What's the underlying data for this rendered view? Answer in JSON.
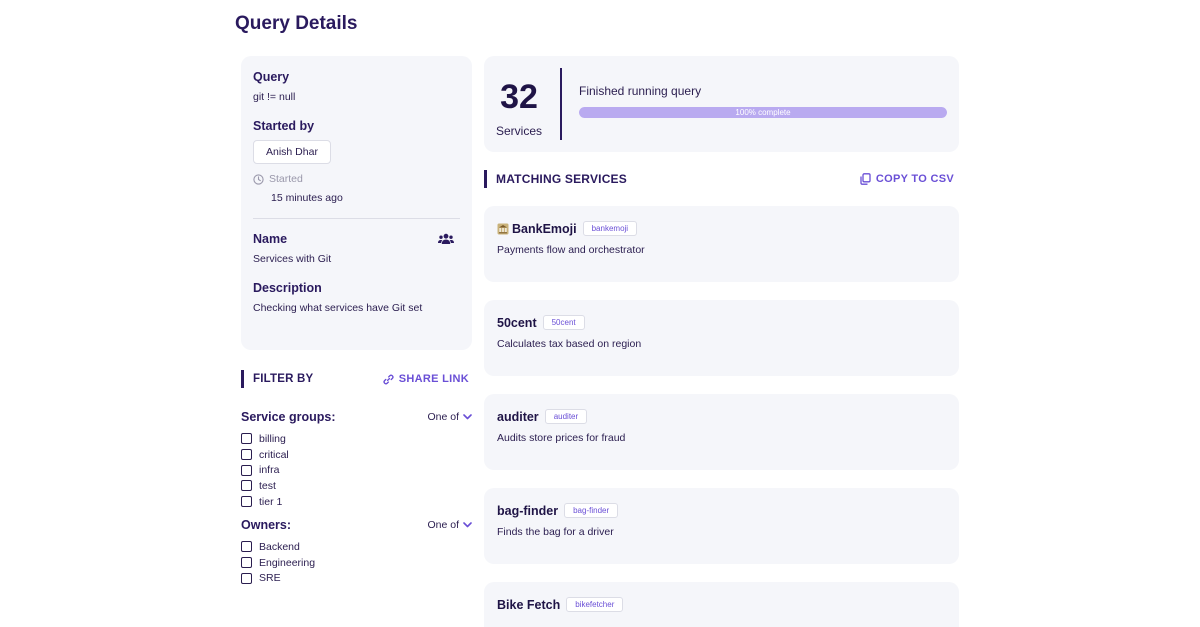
{
  "page": {
    "title": "Query Details"
  },
  "info": {
    "query_label": "Query",
    "query_value": "git != null",
    "started_by_label": "Started by",
    "started_by_user": "Anish Dhar",
    "started_label": "Started",
    "started_time": "15 minutes ago",
    "name_label": "Name",
    "name_value": "Services with Git",
    "description_label": "Description",
    "description_value": "Checking what services have Git set",
    "team_icon": "users-icon"
  },
  "filter": {
    "heading": "FILTER BY",
    "share_label": "SHARE LINK",
    "groups": [
      {
        "title": "Service groups:",
        "mode": "One of",
        "options": [
          "billing",
          "critical",
          "infra",
          "test",
          "tier 1"
        ]
      },
      {
        "title": "Owners:",
        "mode": "One of",
        "options": [
          "Backend",
          "Engineering",
          "SRE"
        ]
      }
    ]
  },
  "summary": {
    "count": "32",
    "count_label": "Services",
    "status": "Finished running query",
    "progress_percent": 100,
    "progress_text": "100% complete"
  },
  "matching": {
    "heading": "MATCHING SERVICES",
    "copy_label": "COPY TO CSV",
    "services": [
      {
        "name": "BankEmoji",
        "tag": "bankemoji",
        "description": "Payments flow and orchestrator",
        "emoji": "bank-icon"
      },
      {
        "name": "50cent",
        "tag": "50cent",
        "description": "Calculates tax based on region"
      },
      {
        "name": "auditer",
        "tag": "auditer",
        "description": "Audits store prices for fraud"
      },
      {
        "name": "bag-finder",
        "tag": "bag-finder",
        "description": "Finds the bag for a driver"
      },
      {
        "name": "Bike Fetch",
        "tag": "bikefetcher",
        "description": ""
      }
    ]
  },
  "colors": {
    "primary_text": "#2a1a5e",
    "accent": "#6a4fd6",
    "card_bg": "#f5f6fa",
    "progress_fill": "#b9aaf0"
  }
}
